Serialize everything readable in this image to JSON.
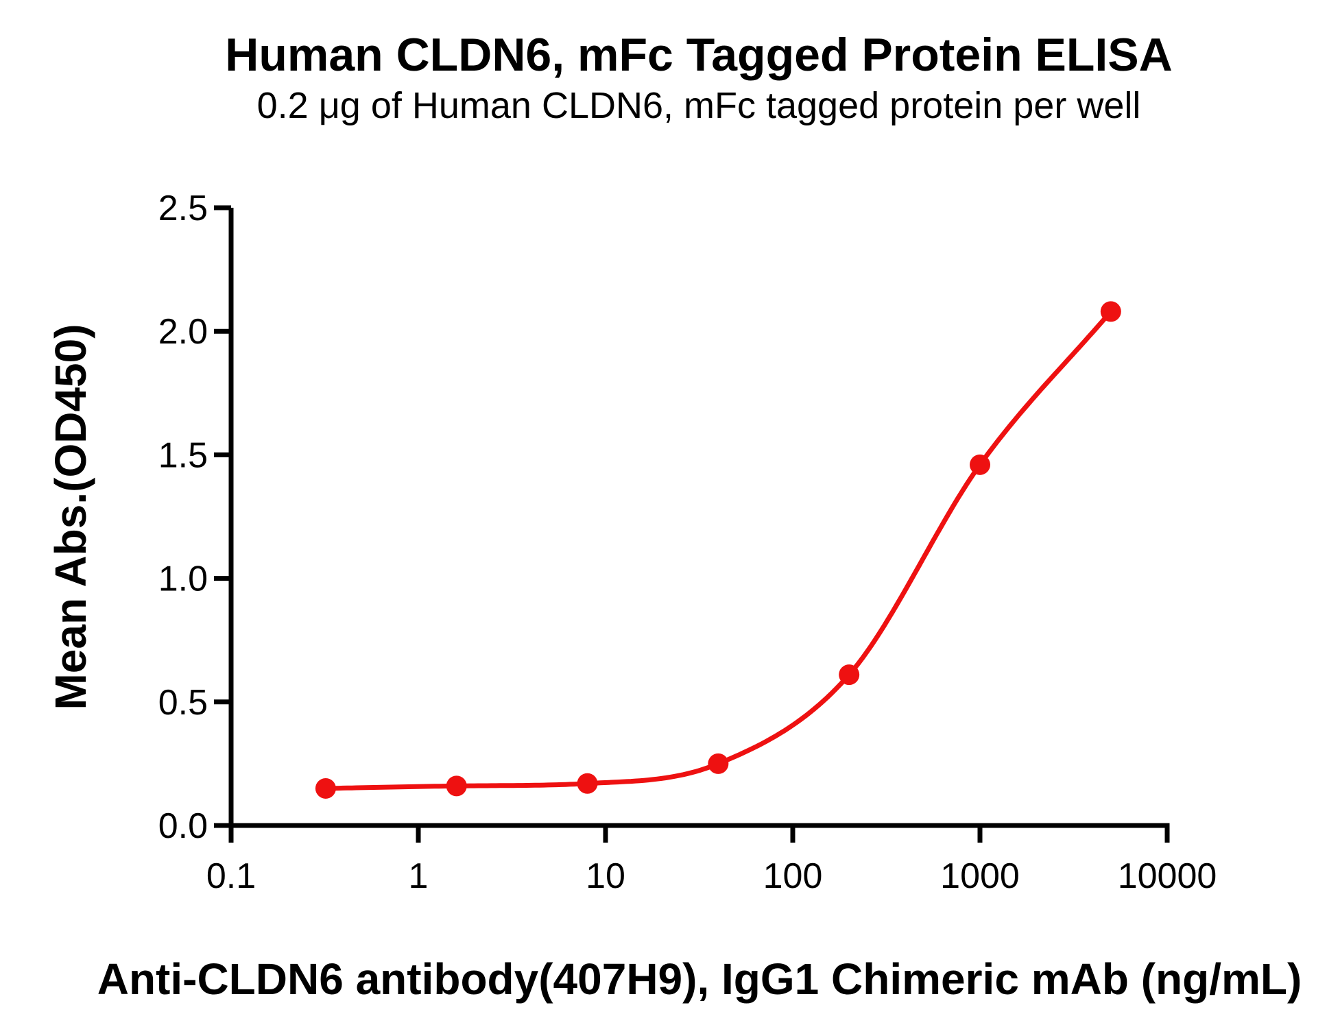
{
  "chart_data": {
    "type": "line",
    "title": "Human CLDN6, mFc Tagged Protein ELISA",
    "subtitle": "0.2 μg of Human CLDN6, mFc tagged protein per well",
    "xlabel": "Anti-CLDN6 antibody(407H9), IgG1 Chimeric mAb (ng/mL)",
    "ylabel": "Mean Abs.(OD450)",
    "x_scale": "log10",
    "xlim": [
      0.1,
      10000
    ],
    "ylim": [
      0.0,
      2.5
    ],
    "x_ticks": [
      0.1,
      1,
      10,
      100,
      1000,
      10000
    ],
    "x_tick_labels": [
      "0.1",
      "1",
      "10",
      "100",
      "1000",
      "10000"
    ],
    "y_ticks": [
      0.0,
      0.5,
      1.0,
      1.5,
      2.0,
      2.5
    ],
    "y_tick_labels": [
      "0.0",
      "0.5",
      "1.0",
      "1.5",
      "2.0",
      "2.5"
    ],
    "grid": false,
    "legend": false,
    "series": [
      {
        "marker": "circle",
        "color": "#ee1111",
        "points": [
          {
            "x": 0.32,
            "y": 0.15
          },
          {
            "x": 1.6,
            "y": 0.16
          },
          {
            "x": 8,
            "y": 0.17
          },
          {
            "x": 40,
            "y": 0.25
          },
          {
            "x": 200,
            "y": 0.61
          },
          {
            "x": 1000,
            "y": 1.46
          },
          {
            "x": 5000,
            "y": 2.08
          }
        ]
      }
    ],
    "colors": {
      "curve": "#ee1111",
      "axis": "#000000",
      "background": "#ffffff"
    }
  }
}
